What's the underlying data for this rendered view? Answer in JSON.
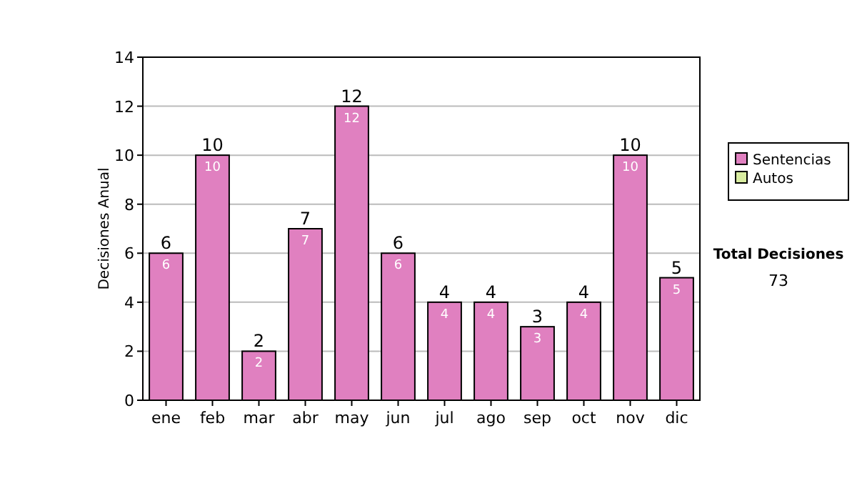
{
  "chart_data": {
    "type": "bar",
    "stacked": true,
    "ylabel": "Decisiones Anual",
    "categories": [
      "ene",
      "feb",
      "mar",
      "abr",
      "may",
      "jun",
      "jul",
      "ago",
      "sep",
      "oct",
      "nov",
      "dic"
    ],
    "series": [
      {
        "name": "Sentencias",
        "color": "#e080c0",
        "values": [
          6,
          10,
          2,
          7,
          12,
          6,
          4,
          4,
          3,
          4,
          10,
          5
        ],
        "value_labels": [
          "6",
          "10",
          "2",
          "7",
          "12",
          "6",
          "4",
          "4",
          "3",
          "4",
          "10",
          "5"
        ]
      },
      {
        "name": "Autos",
        "color": "#d8eca0",
        "values": [
          0,
          0,
          0,
          0,
          0,
          0,
          0,
          0,
          0,
          0,
          0,
          0
        ]
      }
    ],
    "totals": [
      "6",
      "10",
      "2",
      "7",
      "12",
      "6",
      "4",
      "4",
      "3",
      "4",
      "10",
      "5"
    ],
    "ylim": [
      0,
      14
    ],
    "yticks": [
      0,
      2,
      4,
      6,
      8,
      10,
      12,
      14
    ],
    "grid": "y",
    "legend": "right",
    "annotations": [
      "Total Decisiones",
      "73"
    ]
  }
}
